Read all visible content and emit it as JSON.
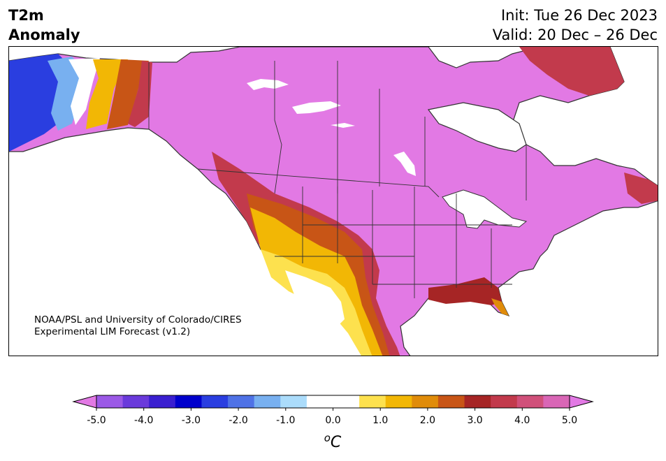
{
  "header": {
    "title_line1": "T2m",
    "title_line2": "Anomaly",
    "init_text": "Init: Tue 26 Dec 2023",
    "valid_text": "Valid: 20 Dec – 26 Dec"
  },
  "credit": {
    "line1": "NOAA/PSL and University of Colorado/CIRES",
    "line2": "Experimental LIM Forecast (v1.2)"
  },
  "colorbar": {
    "unit_base": "C",
    "unit_sup": "o",
    "tick_labels": [
      "-5.0",
      "-4.0",
      "-3.0",
      "-2.0",
      "-1.0",
      "0.0",
      "1.0",
      "2.0",
      "3.0",
      "4.0",
      "5.0"
    ],
    "bin_colors": [
      "#9b59e6",
      "#6a3adb",
      "#3a1fd0",
      "#0000cc",
      "#2a3ee0",
      "#4f72e6",
      "#78b0f0",
      "#abdcfb",
      "#ffffff",
      "#ffffff",
      "#fde14e",
      "#f2b705",
      "#e08c0a",
      "#c85516",
      "#a62525",
      "#c23a4c",
      "#d0507a",
      "#d966b6"
    ],
    "low_extend_color": "#e279e4",
    "high_extend_color": "#e279e4",
    "min": -5.0,
    "max": 5.0
  },
  "map": {
    "region": "North America",
    "dominant_anomaly_color": "#e279e4",
    "water_color": "#ffffff",
    "boundary_color": "#333333"
  }
}
